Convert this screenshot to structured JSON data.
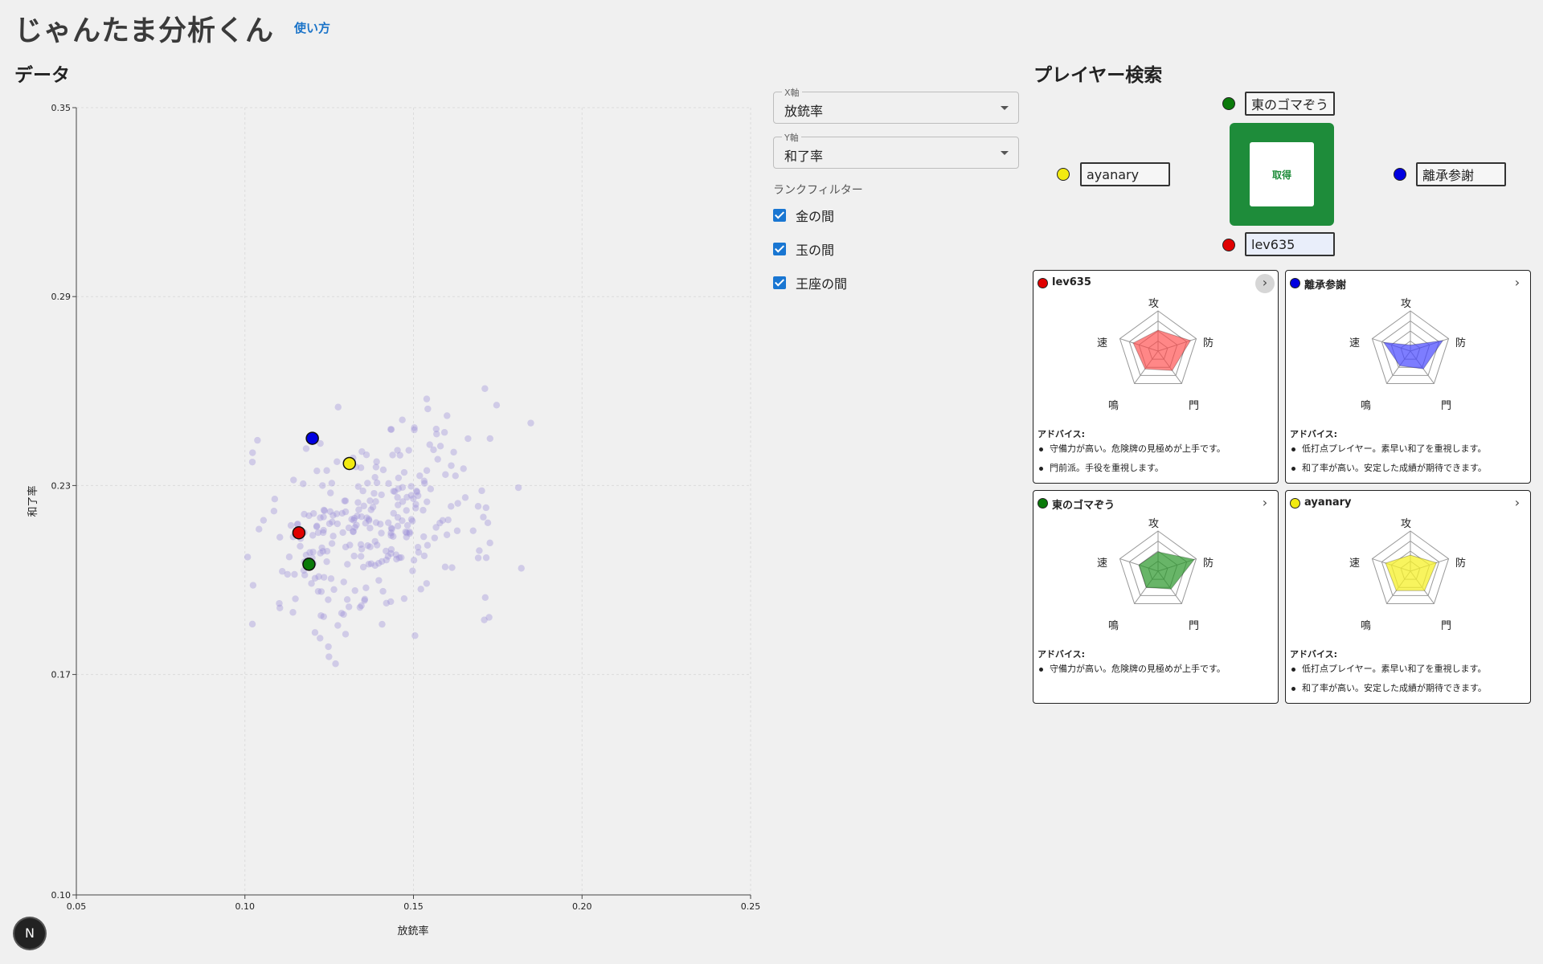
{
  "header": {
    "title": "じゃんたま分析くん",
    "help_link": "使い方"
  },
  "data_section": {
    "heading": "データ"
  },
  "controls": {
    "x_axis": {
      "label": "X軸",
      "value": "放銃率"
    },
    "y_axis": {
      "label": "Y軸",
      "value": "和了率"
    },
    "rank_filter": {
      "label": "ランクフィルター",
      "options": [
        {
          "label": "金の間",
          "checked": true
        },
        {
          "label": "玉の間",
          "checked": true
        },
        {
          "label": "王座の間",
          "checked": true
        }
      ]
    },
    "checkbox_color": "#1976d2"
  },
  "chart_data": {
    "type": "scatter",
    "xlabel": "放銃率",
    "ylabel": "和了率",
    "xlim": [
      0.05,
      0.25
    ],
    "ylim": [
      0.1,
      0.35
    ],
    "x_ticks": [
      "0.05",
      "0.10",
      "0.15",
      "0.20",
      "0.25"
    ],
    "y_ticks": [
      "0.10",
      "0.17",
      "0.23",
      "0.29",
      "0.35"
    ],
    "grid": true,
    "background_color": "#9b8fd8",
    "highlighted": [
      {
        "name": "lev635",
        "color": "#e00000",
        "x": 0.116,
        "y": 0.215
      },
      {
        "name": "離承参謝",
        "color": "#0000e0",
        "x": 0.12,
        "y": 0.245
      },
      {
        "name": "東のゴマぞう",
        "color": "#0a7a0a",
        "x": 0.119,
        "y": 0.205
      },
      {
        "name": "ayanary",
        "color": "#f2ea10",
        "x": 0.131,
        "y": 0.237
      }
    ]
  },
  "player_search": {
    "heading": "プレイヤー検索",
    "fetch_button": "取得",
    "players": [
      {
        "value": "東のゴマぞう",
        "color": "#0a7a0a"
      },
      {
        "value": "ayanary",
        "color": "#f2ea10"
      },
      {
        "value": "離承参謝",
        "color": "#0000e0"
      },
      {
        "value": "lev635",
        "color": "#e00000"
      }
    ]
  },
  "radar_axes": [
    "攻",
    "防",
    "門",
    "鳴",
    "速"
  ],
  "cards": [
    {
      "name": "lev635",
      "color": "#e00000",
      "fill": "rgba(255,70,70,0.65)",
      "stats": [
        0.52,
        0.85,
        0.6,
        0.55,
        0.65
      ],
      "advice_title": "アドバイス:",
      "advice": [
        "守備力が高い。危険牌の見極めが上手です。",
        "門前派。手役を重視します。"
      ]
    },
    {
      "name": "離承参謝",
      "color": "#0000e0",
      "fill": "rgba(70,70,255,0.7)",
      "stats": [
        0.15,
        0.85,
        0.55,
        0.45,
        0.7
      ],
      "advice_title": "アドバイス:",
      "advice": [
        "低打点プレイヤー。素早い和了を重視します。",
        "和了率が高い。安定した成績が期待できます。"
      ]
    },
    {
      "name": "東のゴマぞう",
      "color": "#0a7a0a",
      "fill": "rgba(40,150,40,0.7)",
      "stats": [
        0.48,
        0.95,
        0.55,
        0.5,
        0.5
      ],
      "advice_title": "アドバイス:",
      "advice": [
        "守備力が高い。危険牌の見極めが上手です。"
      ]
    },
    {
      "name": "ayanary",
      "color": "#f2ea10",
      "fill": "rgba(245,240,40,0.75)",
      "stats": [
        0.4,
        0.68,
        0.6,
        0.6,
        0.65
      ],
      "advice_title": "アドバイス:",
      "advice": [
        "低打点プレイヤー。素早い和了を重視します。",
        "和了率が高い。安定した成績が期待できます。"
      ]
    }
  ],
  "footer": {
    "badge": "N"
  }
}
